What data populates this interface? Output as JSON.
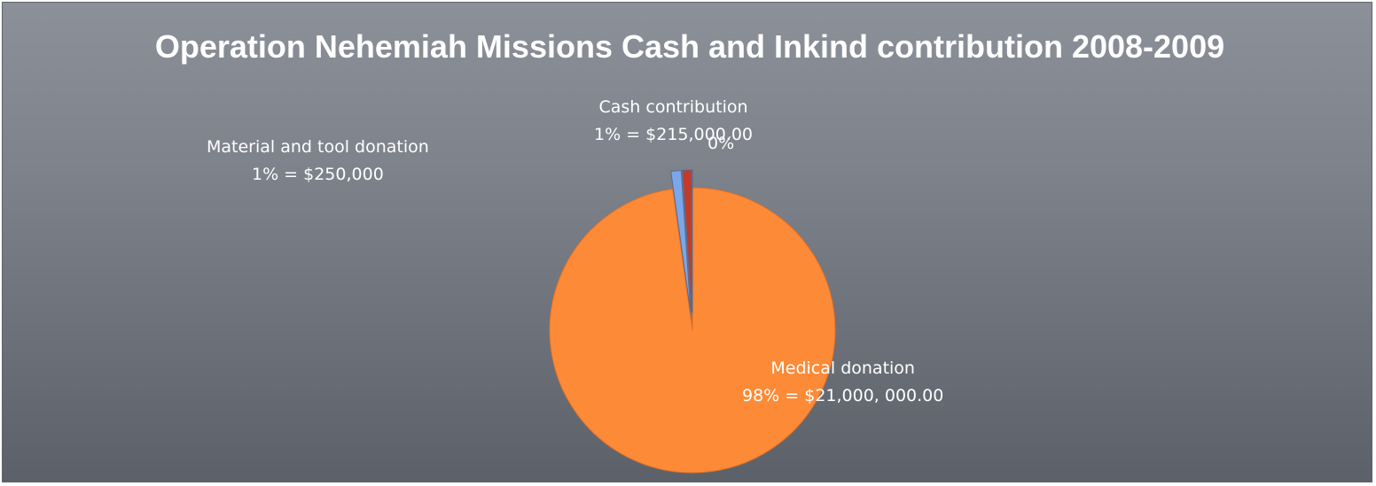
{
  "chart_data": {
    "type": "pie",
    "title": "Operation Nehemiah Missions Cash and Inkind  contribution 2008-2009",
    "slices": [
      {
        "name": "Medical donation",
        "label": "98% = $21,000, 000.00",
        "percent": 97.85,
        "color": "#fd8a36"
      },
      {
        "name": "Material and tool donation",
        "label": "1% = $250,000",
        "percent": 1.16,
        "color": "#7ba7ea"
      },
      {
        "name": "Cash contribution",
        "label": "1% = $215,000.00",
        "percent": 1.0,
        "color": "#c33a2a"
      },
      {
        "name": "",
        "label": "0%",
        "percent": 0.05,
        "color": "#a9b94e"
      }
    ]
  }
}
